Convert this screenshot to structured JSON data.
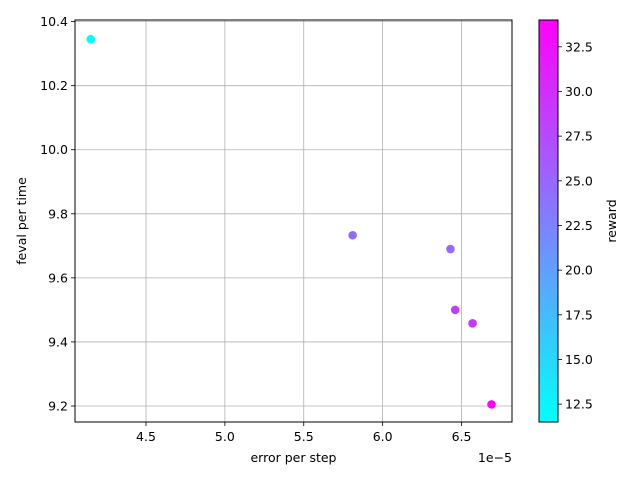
{
  "chart_data": {
    "type": "scatter",
    "xlabel": "error per step",
    "ylabel": "feval per time",
    "x_offset_label": "1e−5",
    "xlim": [
      4.05e-05,
      6.82e-05
    ],
    "ylim": [
      9.15,
      10.405
    ],
    "x_ticks": [
      4.5e-05,
      5e-05,
      5.5e-05,
      6e-05,
      6.5e-05
    ],
    "x_tick_labels": [
      "4.5",
      "5.0",
      "5.5",
      "6.0",
      "6.5"
    ],
    "y_ticks": [
      9.2,
      9.4,
      9.6,
      9.8,
      10.0,
      10.2,
      10.4
    ],
    "y_tick_labels": [
      "9.2",
      "9.4",
      "9.6",
      "9.8",
      "10.0",
      "10.2",
      "10.4"
    ],
    "grid": true,
    "colormap": "cool",
    "colorbar": {
      "label": "reward",
      "range": [
        11.5,
        34.0
      ],
      "ticks": [
        12.5,
        15.0,
        17.5,
        20.0,
        22.5,
        25.0,
        27.5,
        30.0,
        32.5
      ],
      "tick_labels": [
        "12.5",
        "15.0",
        "17.5",
        "20.0",
        "22.5",
        "25.0",
        "27.5",
        "30.0",
        "32.5"
      ]
    },
    "points": [
      {
        "x": 4.15e-05,
        "y": 10.345,
        "reward": 11.5
      },
      {
        "x": 5.81e-05,
        "y": 9.733,
        "reward": 24.5
      },
      {
        "x": 6.43e-05,
        "y": 9.69,
        "reward": 25.0
      },
      {
        "x": 6.46e-05,
        "y": 9.5,
        "reward": 28.5
      },
      {
        "x": 6.57e-05,
        "y": 9.458,
        "reward": 29.0
      },
      {
        "x": 6.69e-05,
        "y": 9.205,
        "reward": 34.0
      }
    ],
    "colors": {
      "low": "#00ffff",
      "high": "#ff00ff",
      "grid": "#b0b0b0",
      "axis": "#000000"
    }
  }
}
